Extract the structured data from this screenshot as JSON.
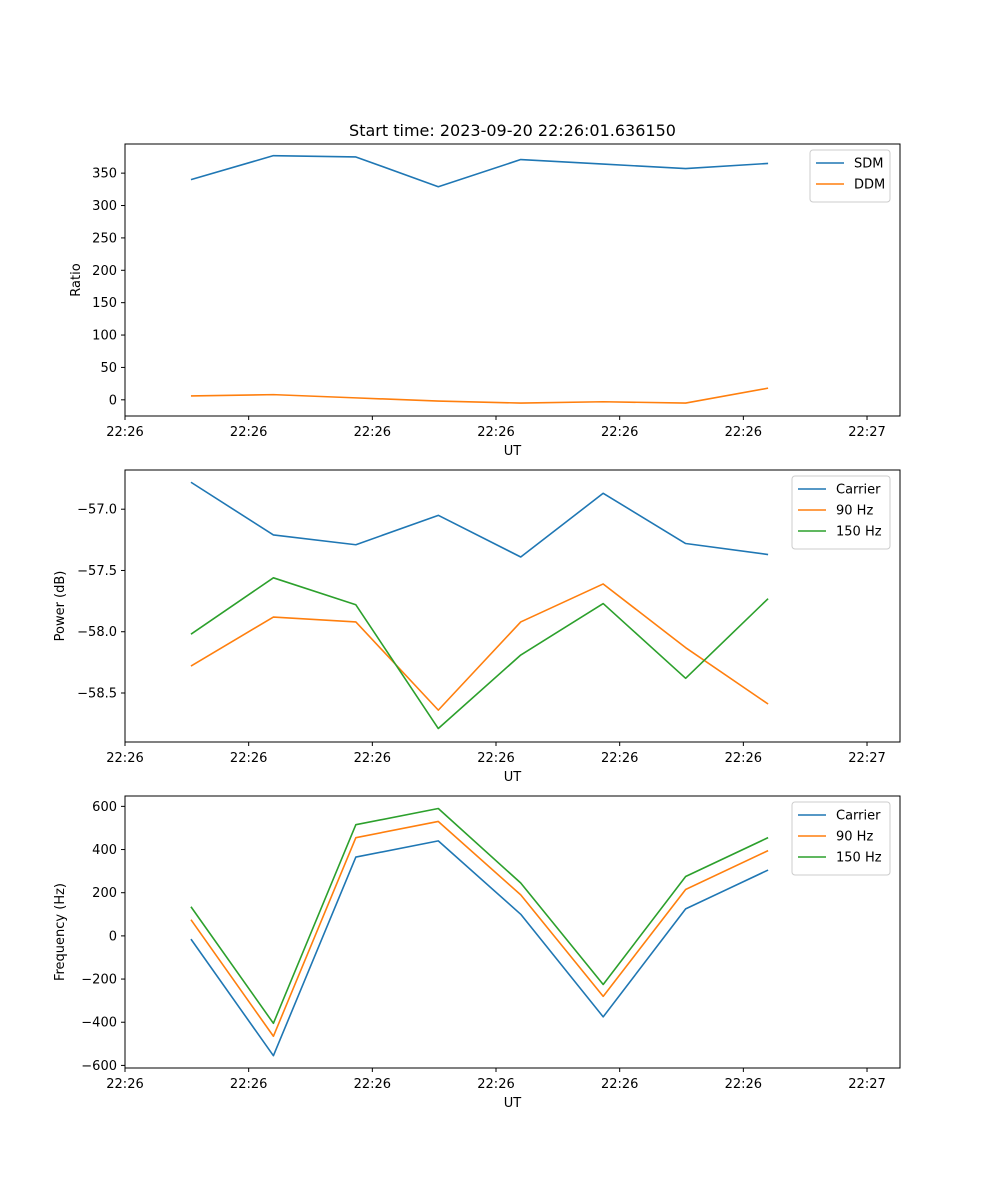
{
  "title": "Start time: 2023-09-20 22:26:01.636150",
  "colors": {
    "c0": "#1f77b4",
    "c1": "#ff7f0e",
    "c2": "#2ca02c"
  },
  "chart_data": [
    {
      "type": "line",
      "title": "Start time: 2023-09-20 22:26:01.636150",
      "xlabel": "UT",
      "ylabel": "Ratio",
      "x": [
        1,
        2,
        3,
        4,
        5,
        6,
        7,
        8
      ],
      "xlim": [
        0.2,
        9.6
      ],
      "ylim": [
        -25,
        395
      ],
      "yticks": [
        0,
        50,
        100,
        150,
        200,
        250,
        300,
        350
      ],
      "xtick_positions": [
        0.2,
        1.7,
        3.2,
        4.7,
        6.2,
        7.7,
        9.2
      ],
      "xtick_labels": [
        "22:26",
        "22:26",
        "22:26",
        "22:26",
        "22:26",
        "22:26",
        "22:27"
      ],
      "legend": "top-right",
      "series": [
        {
          "name": "SDM",
          "color": "#1f77b4",
          "values": [
            340,
            377,
            375,
            329,
            371,
            364,
            357,
            365
          ]
        },
        {
          "name": "DDM",
          "color": "#ff7f0e",
          "values": [
            6,
            8,
            3,
            -2,
            -5,
            -3,
            -5,
            18
          ]
        }
      ]
    },
    {
      "type": "line",
      "xlabel": "UT",
      "ylabel": "Power (dB)",
      "x": [
        1,
        2,
        3,
        4,
        5,
        6,
        7,
        8
      ],
      "xlim": [
        0.2,
        9.6
      ],
      "ylim": [
        -58.9,
        -56.68
      ],
      "yticks": [
        -58.5,
        -58.0,
        -57.5,
        -57.0
      ],
      "ytick_labels": [
        "−58.5",
        "−58.0",
        "−57.5",
        "−57.0"
      ],
      "xtick_positions": [
        0.2,
        1.7,
        3.2,
        4.7,
        6.2,
        7.7,
        9.2
      ],
      "xtick_labels": [
        "22:26",
        "22:26",
        "22:26",
        "22:26",
        "22:26",
        "22:26",
        "22:27"
      ],
      "legend": "top-right",
      "series": [
        {
          "name": "Carrier",
          "color": "#1f77b4",
          "values": [
            -56.78,
            -57.21,
            -57.29,
            -57.05,
            -57.39,
            -56.87,
            -57.28,
            -57.37
          ]
        },
        {
          "name": "90 Hz",
          "color": "#ff7f0e",
          "values": [
            -58.28,
            -57.88,
            -57.92,
            -58.64,
            -57.92,
            -57.61,
            -58.13,
            -58.59
          ]
        },
        {
          "name": "150 Hz",
          "color": "#2ca02c",
          "values": [
            -58.02,
            -57.56,
            -57.78,
            -58.79,
            -58.19,
            -57.77,
            -58.38,
            -57.73
          ]
        }
      ]
    },
    {
      "type": "line",
      "xlabel": "UT",
      "ylabel": "Frequency (Hz)",
      "x": [
        1,
        2,
        3,
        4,
        5,
        6,
        7,
        8
      ],
      "xlim": [
        0.2,
        9.6
      ],
      "ylim": [
        -612,
        648
      ],
      "yticks": [
        -600,
        -400,
        -200,
        0,
        200,
        400,
        600
      ],
      "ytick_labels": [
        "−600",
        "−400",
        "−200",
        "0",
        "200",
        "400",
        "600"
      ],
      "xtick_positions": [
        0.2,
        1.7,
        3.2,
        4.7,
        6.2,
        7.7,
        9.2
      ],
      "xtick_labels": [
        "22:26",
        "22:26",
        "22:26",
        "22:26",
        "22:26",
        "22:26",
        "22:27"
      ],
      "legend": "top-right",
      "series": [
        {
          "name": "Carrier",
          "color": "#1f77b4",
          "values": [
            -15,
            -555,
            365,
            440,
            100,
            -375,
            125,
            305
          ]
        },
        {
          "name": "90 Hz",
          "color": "#ff7f0e",
          "values": [
            75,
            -465,
            455,
            530,
            190,
            -280,
            215,
            395
          ]
        },
        {
          "name": "150 Hz",
          "color": "#2ca02c",
          "values": [
            135,
            -405,
            515,
            590,
            245,
            -225,
            275,
            455
          ]
        }
      ]
    }
  ]
}
